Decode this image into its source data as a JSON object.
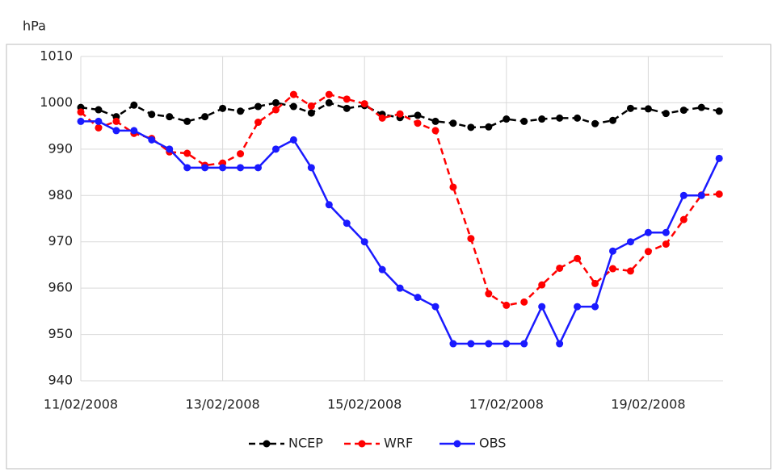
{
  "chart_data": {
    "type": "line",
    "y_label": "hPa",
    "categories": [
      "11/02/2008",
      null,
      null,
      null,
      null,
      null,
      null,
      null,
      "13/02/2008",
      null,
      null,
      null,
      null,
      null,
      null,
      null,
      "15/02/2008",
      null,
      null,
      null,
      null,
      null,
      null,
      null,
      "17/02/2008",
      null,
      null,
      null,
      null,
      null,
      null,
      null,
      "19/02/2008",
      null,
      null,
      null,
      null
    ],
    "series": [
      {
        "name": "NCEP",
        "color": "#000000",
        "dashed": true,
        "values": [
          999,
          998.5,
          997,
          999.5,
          997.5,
          997,
          996,
          997,
          998.8,
          998.2,
          999.2,
          1000,
          999.2,
          997.8,
          1000,
          998.8,
          999.4,
          997.5,
          996.8,
          997.3,
          996,
          995.6,
          994.7,
          994.8,
          996.5,
          996,
          996.5,
          996.7,
          996.7,
          995.5,
          996.2,
          998.8,
          998.7,
          997.7,
          998.4,
          999,
          998.2
        ]
      },
      {
        "name": "WRF",
        "color": "#ff0000",
        "dashed": true,
        "values": [
          998,
          994.6,
          996,
          993.4,
          992.3,
          989.4,
          989.1,
          986.5,
          987,
          989,
          995.8,
          998.5,
          1001.8,
          999.3,
          1001.8,
          1000.8,
          999.8,
          996.7,
          997.6,
          995.6,
          994,
          981.8,
          970.7,
          958.8,
          956.3,
          957,
          960.7,
          964.3,
          966.4,
          961,
          964.2,
          963.7,
          967.9,
          969.5,
          974.8,
          980.1,
          980.3
        ]
      },
      {
        "name": "OBS",
        "color": "#1a1aff",
        "dashed": false,
        "values": [
          996,
          996,
          994,
          994,
          992,
          990,
          986,
          986,
          986,
          986,
          986,
          990,
          992,
          986,
          978,
          974,
          970,
          964,
          960,
          958,
          956,
          948,
          948,
          948,
          948,
          948,
          956,
          948,
          956,
          956,
          968,
          970,
          972,
          972,
          980,
          980,
          988
        ]
      }
    ],
    "ylim": [
      940,
      1010
    ],
    "yticks": [
      940,
      950,
      960,
      970,
      980,
      990,
      1000,
      1010
    ],
    "grid": true,
    "legend": "bottom"
  }
}
